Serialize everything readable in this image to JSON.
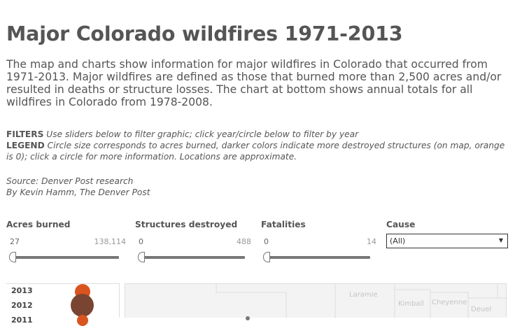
{
  "header": {
    "title": "Major Colorado wildfires 1971-2013",
    "intro": "The map and charts show information for major wildfires in Colorado that occurred from 1971-2013. Major wildfires are defined as those that burned more than 2,500 acres and/or resulted in deaths or structure losses. The chart at bottom shows annual totals for all wildfires in Colorado from 1978-2008."
  },
  "notes": {
    "filters_label": "FILTERS",
    "filters_text": "Use sliders below to filter graphic; click year/circle below to filter by year",
    "legend_label": "LEGEND",
    "legend_text": "Circle size corresponds to acres burned, darker colors indicate more destroyed structures (on map, orange is 0); click a circle for more information. Locations are approximate."
  },
  "credits": {
    "source": "Source: Denver Post research",
    "byline": "By Kevin Hamm, The Denver Post"
  },
  "filters": {
    "acres": {
      "label": "Acres burned",
      "min": "27",
      "max": "138,114"
    },
    "structures": {
      "label": "Structures destroyed",
      "min": "0",
      "max": "488"
    },
    "fatalities": {
      "label": "Fatalities",
      "min": "0",
      "max": "14"
    },
    "cause": {
      "label": "Cause",
      "selected": "(All)"
    }
  },
  "year_list": {
    "years": [
      "2013",
      "2012",
      "2011"
    ]
  },
  "map": {
    "counties": [
      "Laramie",
      "Kimball",
      "Cheyenne",
      "Deuel"
    ]
  },
  "colors": {
    "fire_low": "#d9541e",
    "fire_high": "#7a4432",
    "text": "#555555"
  }
}
